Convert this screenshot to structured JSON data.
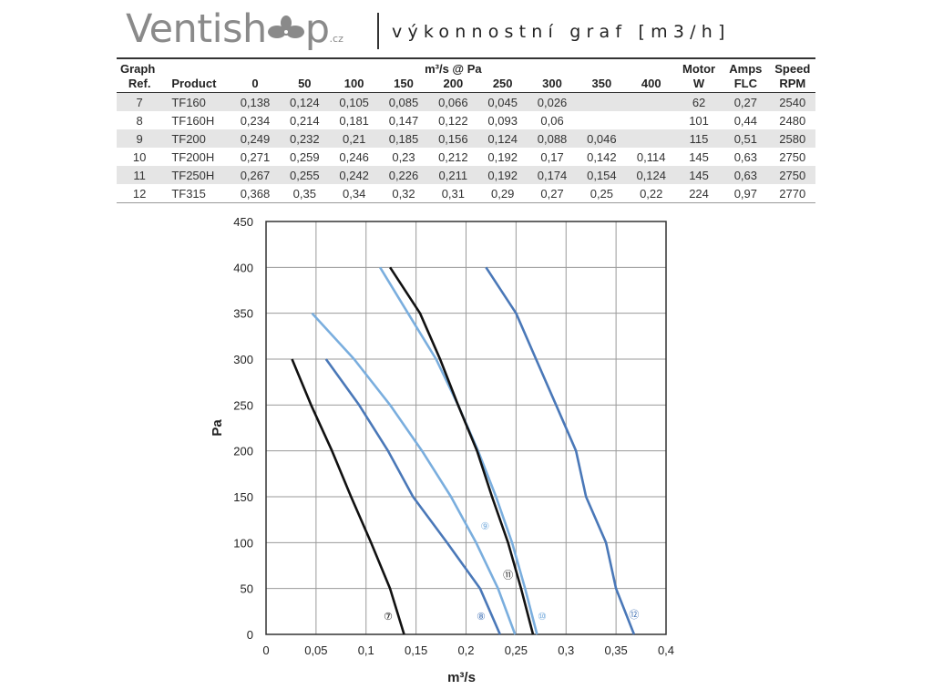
{
  "header": {
    "logo_prefix": "Ventish",
    "logo_suffix": "p",
    "logo_tld": ".cz",
    "title": "výkonnostní graf [m3/h]"
  },
  "table": {
    "header_row1": [
      "Graph",
      "",
      "",
      "",
      "",
      "m³/s @ Pa",
      "",
      "",
      "",
      "",
      "",
      "Motor",
      "Amps",
      "Speed"
    ],
    "header_row2": [
      "Ref.",
      "Product",
      "0",
      "50",
      "100",
      "150",
      "200",
      "250",
      "300",
      "350",
      "400",
      "W",
      "FLC",
      "RPM"
    ],
    "rows": [
      [
        "7",
        "TF160",
        "0,138",
        "0,124",
        "0,105",
        "0,085",
        "0,066",
        "0,045",
        "0,026",
        "",
        "",
        "62",
        "0,27",
        "2540"
      ],
      [
        "8",
        "TF160H",
        "0,234",
        "0,214",
        "0,181",
        "0,147",
        "0,122",
        "0,093",
        "0,06",
        "",
        "",
        "101",
        "0,44",
        "2480"
      ],
      [
        "9",
        "TF200",
        "0,249",
        "0,232",
        "0,21",
        "0,185",
        "0,156",
        "0,124",
        "0,088",
        "0,046",
        "",
        "115",
        "0,51",
        "2580"
      ],
      [
        "10",
        "TF200H",
        "0,271",
        "0,259",
        "0,246",
        "0,23",
        "0,212",
        "0,192",
        "0,17",
        "0,142",
        "0,114",
        "145",
        "0,63",
        "2750"
      ],
      [
        "11",
        "TF250H",
        "0,267",
        "0,255",
        "0,242",
        "0,226",
        "0,211",
        "0,192",
        "0,174",
        "0,154",
        "0,124",
        "145",
        "0,63",
        "2750"
      ],
      [
        "12",
        "TF315",
        "0,368",
        "0,35",
        "0,34",
        "0,32",
        "0,31",
        "0,29",
        "0,27",
        "0,25",
        "0,22",
        "224",
        "0,97",
        "2770"
      ]
    ]
  },
  "chart_data": {
    "type": "line",
    "xlabel": "m³/s",
    "ylabel": "Pa",
    "xlim": [
      0,
      0.4
    ],
    "ylim": [
      0,
      450
    ],
    "x_ticks": [
      "0",
      "0,05",
      "0,1",
      "0,15",
      "0,2",
      "0,25",
      "0,3",
      "0,35",
      "0,4"
    ],
    "y_ticks": [
      "0",
      "50",
      "100",
      "150",
      "200",
      "250",
      "300",
      "350",
      "400",
      "450"
    ],
    "grid": true,
    "series": [
      {
        "name": "⑦",
        "color": "#111111",
        "pressure": [
          0,
          50,
          100,
          150,
          200,
          250,
          300
        ],
        "flow": [
          0.138,
          0.124,
          0.105,
          0.085,
          0.066,
          0.045,
          0.026
        ],
        "label_at": [
          0.122,
          20
        ]
      },
      {
        "name": "⑧",
        "color": "#4a78b8",
        "pressure": [
          0,
          50,
          100,
          150,
          200,
          250,
          300
        ],
        "flow": [
          0.234,
          0.214,
          0.181,
          0.147,
          0.122,
          0.093,
          0.06
        ],
        "label_at": [
          0.215,
          20
        ]
      },
      {
        "name": "⑨",
        "color": "#7aaede",
        "pressure": [
          0,
          50,
          100,
          150,
          200,
          250,
          300,
          350
        ],
        "flow": [
          0.249,
          0.232,
          0.21,
          0.185,
          0.156,
          0.124,
          0.088,
          0.046
        ],
        "label_at": [
          0.219,
          118
        ]
      },
      {
        "name": "⑩",
        "color": "#7aaede",
        "pressure": [
          0,
          50,
          100,
          150,
          200,
          250,
          300,
          350,
          400
        ],
        "flow": [
          0.271,
          0.259,
          0.246,
          0.23,
          0.212,
          0.192,
          0.17,
          0.142,
          0.114
        ],
        "label_at": [
          0.276,
          20
        ]
      },
      {
        "name": "⑪",
        "color": "#111111",
        "pressure": [
          0,
          50,
          100,
          150,
          200,
          250,
          300,
          350,
          400
        ],
        "flow": [
          0.267,
          0.255,
          0.242,
          0.226,
          0.211,
          0.192,
          0.174,
          0.154,
          0.124
        ],
        "label_at": [
          0.242,
          65
        ]
      },
      {
        "name": "⑫",
        "color": "#4a78b8",
        "pressure": [
          0,
          50,
          100,
          150,
          200,
          250,
          300,
          350,
          400
        ],
        "flow": [
          0.368,
          0.35,
          0.34,
          0.32,
          0.31,
          0.29,
          0.27,
          0.25,
          0.22
        ],
        "label_at": [
          0.368,
          22
        ]
      }
    ]
  }
}
